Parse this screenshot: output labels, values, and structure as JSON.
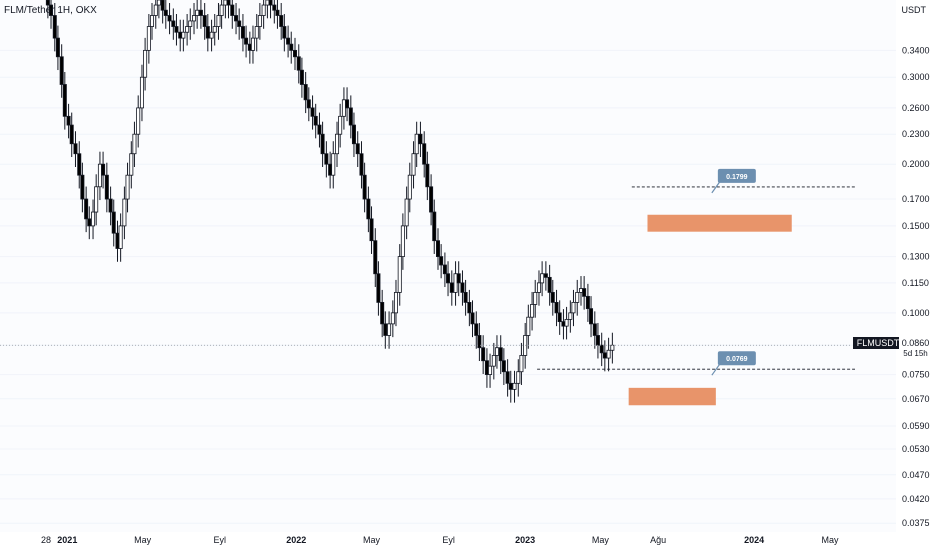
{
  "header": {
    "symbol_title": "FLM/Tether 1H, OKX",
    "unit": "USDT"
  },
  "price_scale": {
    "symbol_tag": "FLMUSDT",
    "last_price": "0.0860",
    "countdown": "5d 15h"
  },
  "colors": {
    "bull": "#131722",
    "bear": "#000000",
    "zone": "#e8946a",
    "callout": "#6c8fb0",
    "grid": "#f0f3fa"
  },
  "chart_data": {
    "type": "candlestick",
    "y_scale": "log",
    "ylim": [
      0.036,
      0.43
    ],
    "y_ticks": [
      "0.3400",
      "0.3000",
      "0.2600",
      "0.2300",
      "0.2000",
      "0.1700",
      "0.1500",
      "0.1300",
      "0.1150",
      "0.1000",
      "0.0860",
      "0.0750",
      "0.0670",
      "0.0590",
      "0.0530",
      "0.0470",
      "0.0420",
      "0.0375"
    ],
    "x_labels": [
      {
        "text": "28",
        "bold": false,
        "date": "2020-11-28"
      },
      {
        "text": "2021",
        "bold": true,
        "date": "2021-01-01"
      },
      {
        "text": "May",
        "bold": false,
        "date": "2021-05-01"
      },
      {
        "text": "Eyl",
        "bold": false,
        "date": "2021-09-01"
      },
      {
        "text": "2022",
        "bold": true,
        "date": "2022-01-01"
      },
      {
        "text": "May",
        "bold": false,
        "date": "2022-05-01"
      },
      {
        "text": "Eyl",
        "bold": false,
        "date": "2022-09-01"
      },
      {
        "text": "2023",
        "bold": true,
        "date": "2023-01-01"
      },
      {
        "text": "May",
        "bold": false,
        "date": "2023-05-01"
      },
      {
        "text": "Ağu",
        "bold": false,
        "date": "2023-08-01"
      },
      {
        "text": "2024",
        "bold": true,
        "date": "2024-01-01"
      },
      {
        "text": "May",
        "bold": false,
        "date": "2024-05-01"
      }
    ],
    "last_price": 0.086,
    "candles_close": [
      0.42,
      0.4,
      0.36,
      0.33,
      0.29,
      0.25,
      0.24,
      0.22,
      0.21,
      0.19,
      0.17,
      0.155,
      0.15,
      0.16,
      0.18,
      0.2,
      0.19,
      0.17,
      0.16,
      0.145,
      0.135,
      0.15,
      0.17,
      0.19,
      0.21,
      0.23,
      0.26,
      0.3,
      0.34,
      0.38,
      0.4,
      0.42,
      0.43,
      0.41,
      0.4,
      0.39,
      0.38,
      0.37,
      0.36,
      0.37,
      0.38,
      0.39,
      0.4,
      0.41,
      0.4,
      0.38,
      0.36,
      0.37,
      0.38,
      0.4,
      0.42,
      0.43,
      0.42,
      0.4,
      0.39,
      0.38,
      0.36,
      0.35,
      0.34,
      0.36,
      0.38,
      0.4,
      0.42,
      0.43,
      0.42,
      0.41,
      0.4,
      0.38,
      0.36,
      0.35,
      0.34,
      0.33,
      0.31,
      0.29,
      0.27,
      0.26,
      0.25,
      0.24,
      0.23,
      0.21,
      0.2,
      0.19,
      0.21,
      0.23,
      0.25,
      0.27,
      0.26,
      0.24,
      0.22,
      0.21,
      0.19,
      0.17,
      0.155,
      0.14,
      0.12,
      0.105,
      0.095,
      0.09,
      0.095,
      0.1,
      0.11,
      0.13,
      0.15,
      0.17,
      0.19,
      0.21,
      0.23,
      0.22,
      0.2,
      0.18,
      0.16,
      0.14,
      0.13,
      0.125,
      0.12,
      0.115,
      0.11,
      0.12,
      0.115,
      0.11,
      0.105,
      0.1,
      0.095,
      0.09,
      0.085,
      0.08,
      0.075,
      0.078,
      0.082,
      0.085,
      0.08,
      0.076,
      0.072,
      0.07,
      0.072,
      0.076,
      0.082,
      0.09,
      0.098,
      0.104,
      0.11,
      0.115,
      0.12,
      0.118,
      0.11,
      0.105,
      0.1,
      0.096,
      0.094,
      0.097,
      0.1,
      0.105,
      0.11,
      0.112,
      0.108,
      0.102,
      0.095,
      0.09,
      0.086,
      0.083,
      0.081,
      0.084,
      0.086
    ],
    "annotations": [
      {
        "type": "horizontal_level",
        "value": 0.1799,
        "label": "0.1799"
      },
      {
        "type": "horizontal_level",
        "value": 0.0769,
        "label": "0.0769"
      },
      {
        "type": "zone",
        "from": 0.146,
        "to": 0.158,
        "start": "2023-07-15",
        "end": "2024-03-01"
      },
      {
        "type": "zone",
        "from": 0.065,
        "to": 0.0705,
        "start": "2023-06-15",
        "end": "2023-11-01"
      }
    ]
  }
}
